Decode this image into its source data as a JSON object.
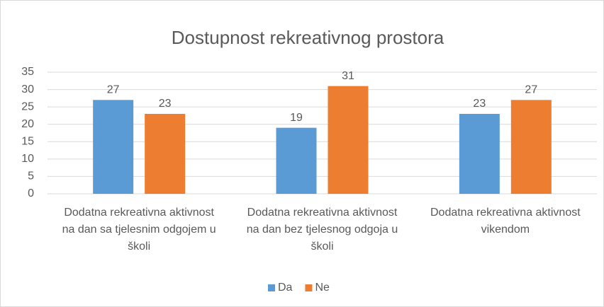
{
  "chart_data": {
    "type": "bar",
    "title": "Dostupnost rekreativnog prostora",
    "categories": [
      "Dodatna rekreativna aktivnost na dan sa tjelesnim odgojem u školi",
      "Dodatna rekreativna aktivnost na dan bez tjelesnog odgoja u školi",
      "Dodatna rekreativna aktivnost vikendom"
    ],
    "series": [
      {
        "name": "Da",
        "color": "#5b9bd5",
        "values": [
          27,
          19,
          23
        ]
      },
      {
        "name": "Ne",
        "color": "#ed7d31",
        "values": [
          23,
          31,
          27
        ]
      }
    ],
    "ylim": [
      0,
      35
    ],
    "yticks": [
      0,
      5,
      10,
      15,
      20,
      25,
      30,
      35
    ],
    "grid": true,
    "legend": "bottom"
  }
}
